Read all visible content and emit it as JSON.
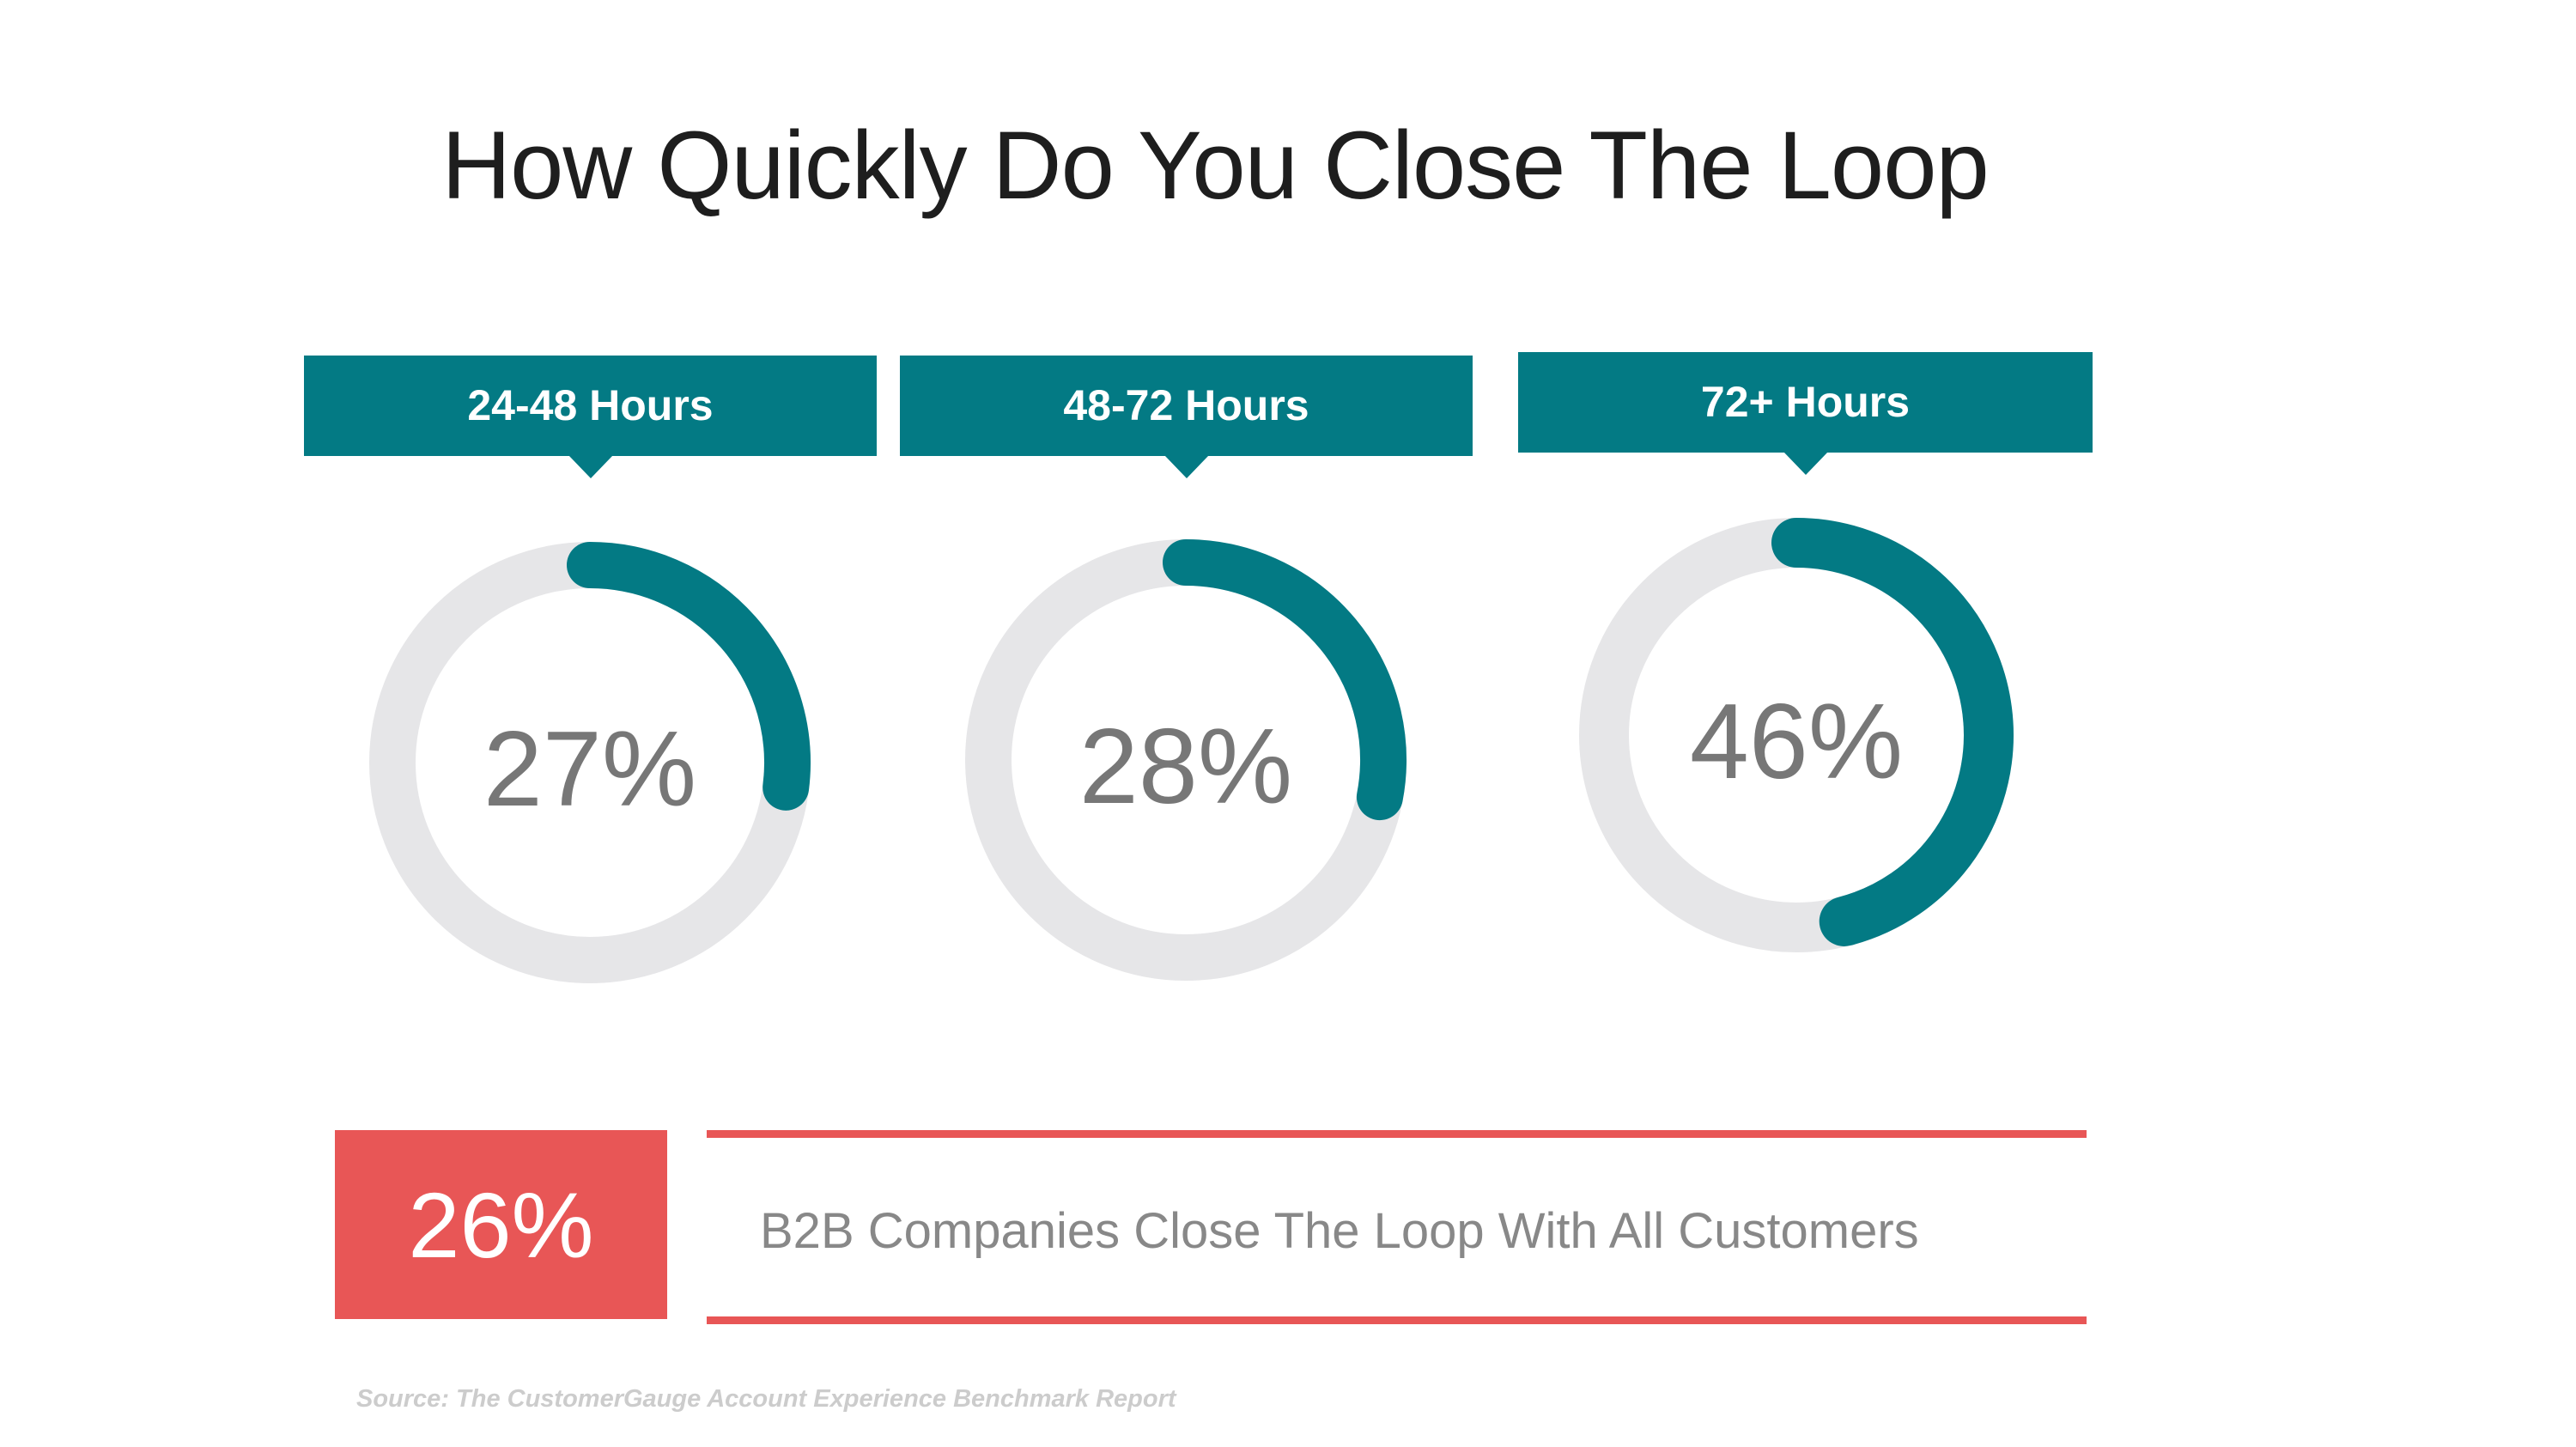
{
  "title": "How Quickly Do You Close The Loop",
  "colors": {
    "accent_teal": "#037a84",
    "track_gray": "#e6e6e8",
    "highlight_red": "#e85656",
    "value_text_gray": "#777777"
  },
  "chart_data": {
    "type": "pie",
    "title": "How Quickly Do You Close The Loop",
    "categories": [
      "24-48 Hours",
      "48-72 Hours",
      "72+ Hours"
    ],
    "values": [
      27,
      28,
      46
    ],
    "value_labels": [
      "27%",
      "28%",
      "46%"
    ],
    "unit": "%",
    "style": "donut-gauge"
  },
  "highlight": {
    "value": "26%",
    "text": "B2B Companies Close The Loop With All Customers"
  },
  "source": "Source: The CustomerGauge Account Experience Benchmark Report"
}
